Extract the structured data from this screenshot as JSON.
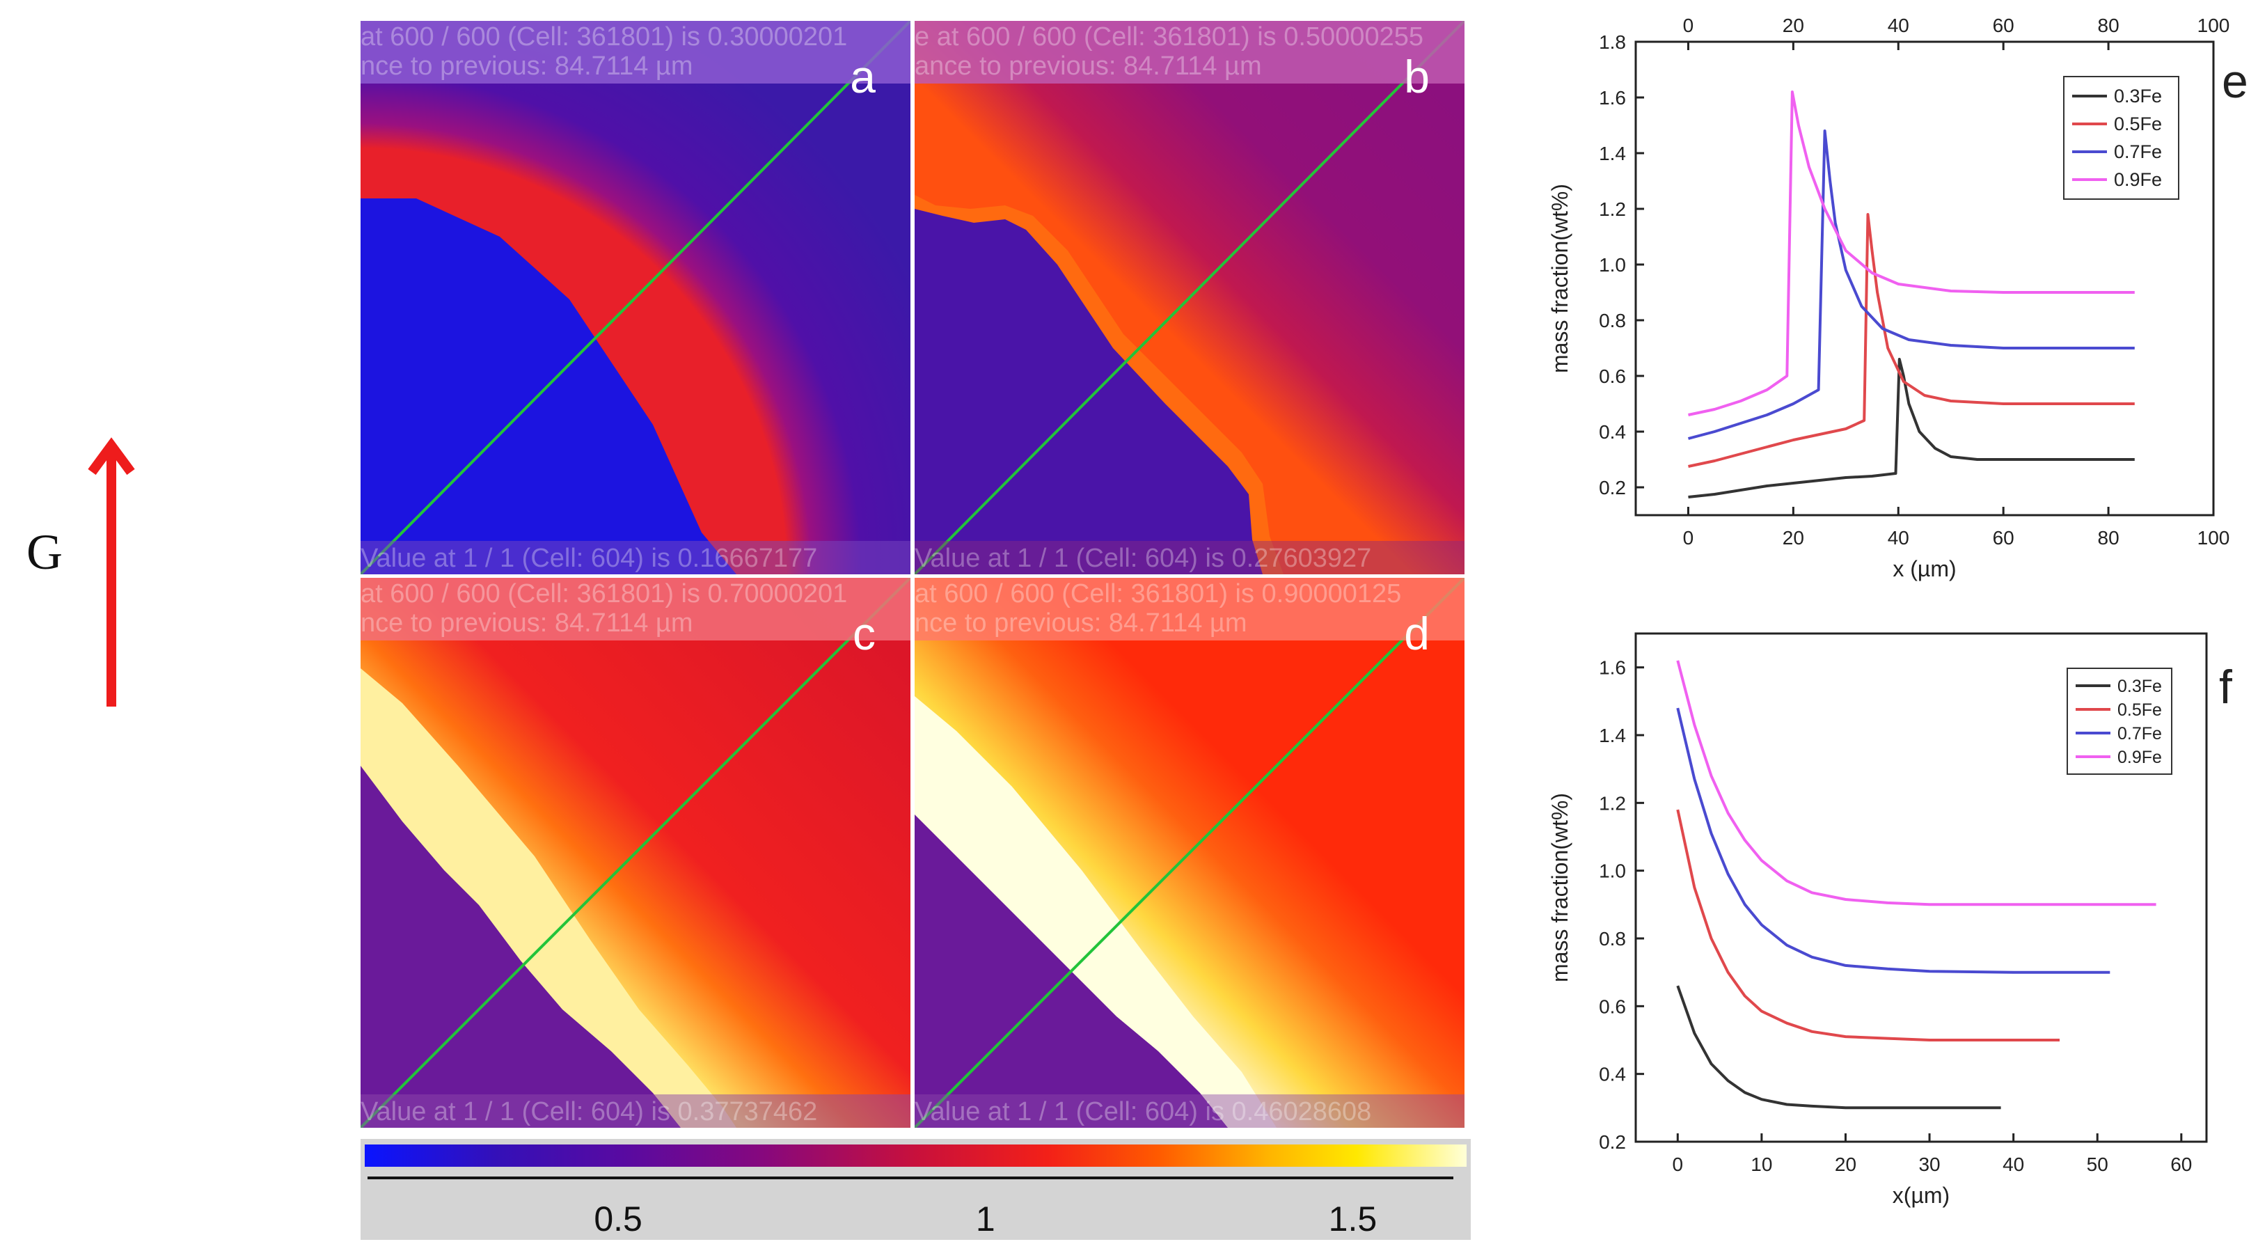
{
  "gradient": {
    "label": "G",
    "arrow_color": "#ee1c1c"
  },
  "panels": [
    {
      "label": "a",
      "top_line1": "at 600 / 600 (Cell: 361801) is 0.30000201",
      "top_line2": "nce to previous: 84.7114 µm",
      "bottom_line": "Value at 1 / 1 (Cell: 604) is 0.16667177",
      "overlay_color": "#8d5cd2"
    },
    {
      "label": "b",
      "top_line1": "e at 600 / 600 (Cell: 361801) is 0.50000255",
      "top_line2": "ance to previous: 84.7114 µm",
      "bottom_line": "Value at 1 / 1 (Cell: 604) is 0.27603927",
      "overlay_color": "#c05ab0"
    },
    {
      "label": "c",
      "top_line1": "at 600 / 600 (Cell: 361801) is 0.70000201",
      "top_line2": "nce to previous: 84.7114 µm",
      "bottom_line": "Value at 1 / 1 (Cell: 604) is 0.37737462",
      "overlay_color": "#f2707a"
    },
    {
      "label": "d",
      "top_line1": "at 600 / 600 (Cell: 361801) is 0.90000125",
      "top_line2": "nce to previous: 84.7114 µm",
      "bottom_line": "Value at 1 / 1 (Cell: 604) is 0.46028608",
      "overlay_color": "#ff7a6a"
    }
  ],
  "colorbar": {
    "ticks": [
      "0.5",
      "1",
      "1.5"
    ],
    "tick_values": [
      0.5,
      1.0,
      1.5
    ],
    "range": [
      0.155,
      1.655
    ]
  },
  "chart_data": [
    {
      "panel_label": "e",
      "type": "line",
      "xlabel": "x (µm)",
      "ylabel": "mass fraction(wt%)",
      "xlim": [
        -10,
        100
      ],
      "ylim": [
        0.1,
        1.8
      ],
      "xticks": [
        0,
        20,
        40,
        60,
        80,
        100
      ],
      "yticks": [
        0.2,
        0.4,
        0.6,
        0.8,
        1.0,
        1.2,
        1.4,
        1.6,
        1.8
      ],
      "top_axis_ticks": [
        0,
        20,
        40,
        60,
        80,
        100
      ],
      "legend_position": "top-right",
      "series": [
        {
          "name": "0.3Fe",
          "color": "#333333",
          "x": [
            0,
            5,
            10,
            15,
            20,
            25,
            30,
            35,
            39.5,
            40.2,
            41,
            42,
            44,
            47,
            50,
            55,
            60,
            70,
            85
          ],
          "y": [
            0.165,
            0.175,
            0.19,
            0.205,
            0.215,
            0.225,
            0.235,
            0.24,
            0.25,
            0.66,
            0.6,
            0.5,
            0.4,
            0.34,
            0.31,
            0.3,
            0.3,
            0.3,
            0.3
          ]
        },
        {
          "name": "0.5Fe",
          "color": "#e0484c",
          "x": [
            0,
            5,
            10,
            15,
            20,
            25,
            30,
            33.5,
            34.2,
            35,
            36,
            38,
            41,
            45,
            50,
            60,
            70,
            85
          ],
          "y": [
            0.275,
            0.295,
            0.32,
            0.345,
            0.37,
            0.39,
            0.41,
            0.44,
            1.18,
            1.05,
            0.9,
            0.7,
            0.58,
            0.53,
            0.51,
            0.5,
            0.5,
            0.5
          ]
        },
        {
          "name": "0.7Fe",
          "color": "#4a4ad0",
          "x": [
            0,
            5,
            10,
            15,
            20,
            24.8,
            26,
            27,
            28,
            30,
            33,
            37,
            42,
            50,
            60,
            70,
            85
          ],
          "y": [
            0.375,
            0.4,
            0.43,
            0.46,
            0.5,
            0.55,
            1.48,
            1.3,
            1.15,
            0.98,
            0.85,
            0.77,
            0.73,
            0.71,
            0.7,
            0.7,
            0.7
          ]
        },
        {
          "name": "0.9Fe",
          "color": "#f060f0",
          "x": [
            0,
            5,
            10,
            15,
            18.8,
            19.8,
            21,
            23,
            26,
            30,
            35,
            40,
            50,
            60,
            70,
            85
          ],
          "y": [
            0.46,
            0.48,
            0.51,
            0.55,
            0.6,
            1.62,
            1.5,
            1.35,
            1.2,
            1.05,
            0.97,
            0.93,
            0.905,
            0.9,
            0.9,
            0.9
          ]
        }
      ]
    },
    {
      "panel_label": "f",
      "type": "line",
      "xlabel": "x(µm)",
      "ylabel": "mass fraction(wt%)",
      "xlim": [
        -5,
        63
      ],
      "ylim": [
        0.2,
        1.7
      ],
      "xticks": [
        0,
        10,
        20,
        30,
        40,
        50,
        60
      ],
      "yticks": [
        0.2,
        0.4,
        0.6,
        0.8,
        1.0,
        1.2,
        1.4,
        1.6
      ],
      "legend_position": "top-right",
      "series": [
        {
          "name": "0.3Fe",
          "color": "#333333",
          "x": [
            0,
            2,
            4,
            6,
            8,
            10,
            13,
            16,
            20,
            25,
            30,
            38.5
          ],
          "y": [
            0.66,
            0.52,
            0.43,
            0.38,
            0.345,
            0.325,
            0.31,
            0.305,
            0.3,
            0.3,
            0.3,
            0.3
          ]
        },
        {
          "name": "0.5Fe",
          "color": "#e0484c",
          "x": [
            0,
            2,
            4,
            6,
            8,
            10,
            13,
            16,
            20,
            25,
            30,
            40,
            45.5
          ],
          "y": [
            1.18,
            0.95,
            0.8,
            0.7,
            0.63,
            0.585,
            0.55,
            0.525,
            0.51,
            0.505,
            0.5,
            0.5,
            0.5
          ]
        },
        {
          "name": "0.7Fe",
          "color": "#4a4ad0",
          "x": [
            0,
            2,
            4,
            6,
            8,
            10,
            13,
            16,
            20,
            25,
            30,
            40,
            51.5
          ],
          "y": [
            1.48,
            1.27,
            1.11,
            0.99,
            0.9,
            0.84,
            0.78,
            0.745,
            0.72,
            0.71,
            0.703,
            0.7,
            0.7
          ]
        },
        {
          "name": "0.9Fe",
          "color": "#f060f0",
          "x": [
            0,
            2,
            4,
            6,
            8,
            10,
            13,
            16,
            20,
            25,
            30,
            40,
            50,
            57
          ],
          "y": [
            1.62,
            1.43,
            1.28,
            1.17,
            1.09,
            1.03,
            0.97,
            0.935,
            0.915,
            0.905,
            0.9,
            0.9,
            0.9,
            0.9
          ]
        }
      ]
    }
  ]
}
